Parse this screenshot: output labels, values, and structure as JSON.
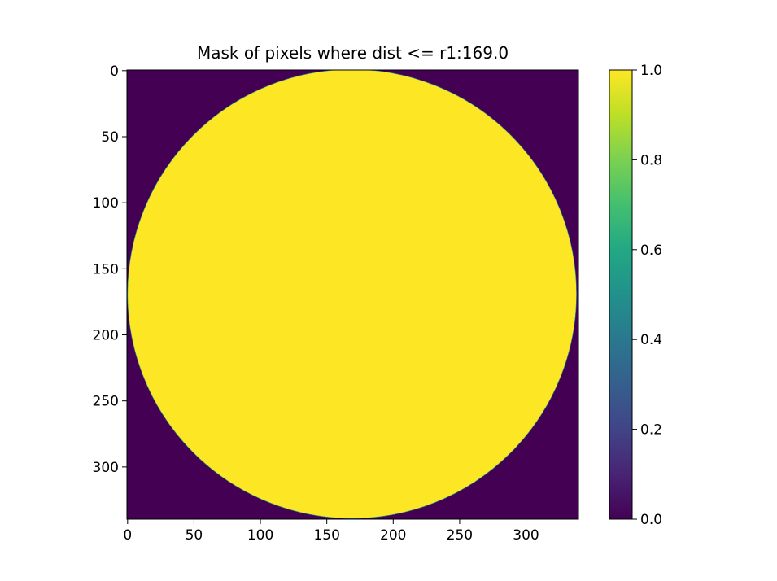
{
  "chart_data": {
    "type": "heatmap",
    "title": "Mask of pixels where dist <= r1:169.0",
    "xlabel": "",
    "ylabel": "",
    "image": {
      "rows": 340,
      "cols": 340,
      "center": [
        169,
        169
      ],
      "radius": 169.0,
      "value_inside": 1.0,
      "value_outside": 0.0
    },
    "x_ticks": [
      0,
      50,
      100,
      150,
      200,
      250,
      300
    ],
    "y_ticks": [
      0,
      50,
      100,
      150,
      200,
      250,
      300
    ],
    "xlim": [
      -0.5,
      339.5
    ],
    "ylim": [
      339.5,
      -0.5
    ],
    "grid": false,
    "colorbar": {
      "colormap": "viridis",
      "range": [
        0.0,
        1.0
      ],
      "ticks": [
        0.0,
        0.2,
        0.4,
        0.6,
        0.8,
        1.0
      ],
      "tick_labels": [
        "0.0",
        "0.2",
        "0.4",
        "0.6",
        "0.8",
        "1.0"
      ]
    }
  }
}
